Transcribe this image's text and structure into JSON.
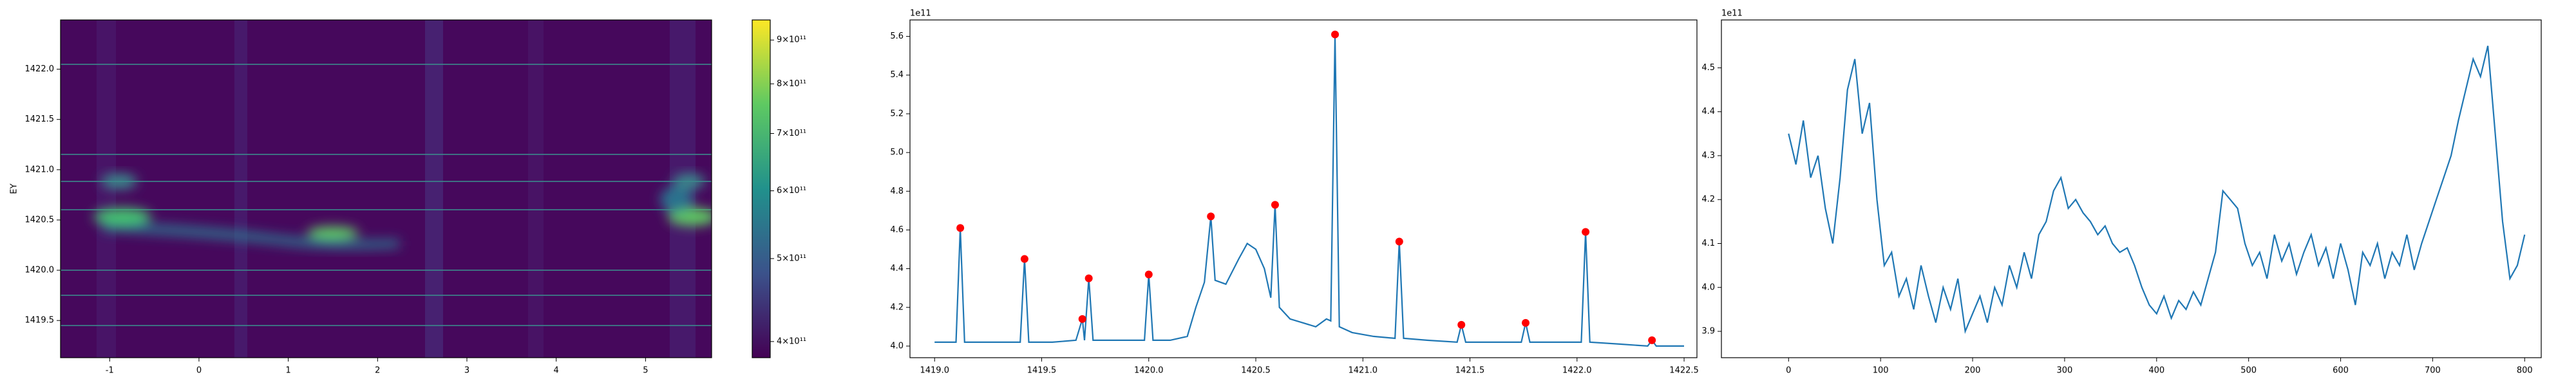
{
  "chart_data": [
    {
      "type": "heatmap",
      "ylabel": "EY",
      "xlim": [
        -1.55,
        5.74
      ],
      "ylim": [
        1419.13,
        1422.49
      ],
      "xticks": [
        -1,
        0,
        1,
        2,
        3,
        4,
        5
      ],
      "yticks": [
        1419.5,
        {
          "value": 1420,
          "label": "1420.0"
        },
        1420.5,
        {
          "value": 1421,
          "label": "1421.0"
        },
        1421.5,
        {
          "value": 1422,
          "label": "1422.0"
        }
      ],
      "colormap": "viridis",
      "colorbar": {
        "scale": "log",
        "lim": [
          383000000000,
          950000000000
        ],
        "ticks": [
          {
            "value": 400000000000,
            "label": "4×10¹¹"
          },
          {
            "value": 500000000000,
            "label": "5×10¹¹"
          },
          {
            "value": 600000000000,
            "label": "6×10¹¹"
          },
          {
            "value": 700000000000,
            "label": "7×10¹¹"
          },
          {
            "value": 800000000000,
            "label": "8×10¹¹"
          },
          {
            "value": 900000000000,
            "label": "9×10¹¹"
          }
        ]
      }
    },
    {
      "type": "line",
      "offset_text": "1e11",
      "color": "#1f77b4",
      "xlim": [
        1418.885,
        1422.56
      ],
      "ylim": [
        3.94,
        5.685
      ],
      "xticks": [
        {
          "value": 1419,
          "label": "1419.0"
        },
        1419.5,
        {
          "value": 1420,
          "label": "1420.0"
        },
        1420.5,
        {
          "value": 1421,
          "label": "1421.0"
        },
        1421.5,
        {
          "value": 1422,
          "label": "1422.0"
        },
        1422.5
      ],
      "yticks": [
        {
          "value": 4,
          "label": "4.0"
        },
        4.2,
        4.4,
        4.6,
        4.8,
        {
          "value": 5,
          "label": "5.0"
        },
        5.2,
        5.4,
        5.6
      ],
      "x": [
        1419.0,
        1419.1,
        1419.12,
        1419.14,
        1419.25,
        1419.4,
        1419.42,
        1419.44,
        1419.55,
        1419.66,
        1419.69,
        1419.7,
        1419.72,
        1419.74,
        1419.85,
        1419.98,
        1420.0,
        1420.02,
        1420.1,
        1420.18,
        1420.22,
        1420.26,
        1420.29,
        1420.31,
        1420.36,
        1420.42,
        1420.46,
        1420.5,
        1420.54,
        1420.57,
        1420.59,
        1420.61,
        1420.66,
        1420.72,
        1420.78,
        1420.83,
        1420.85,
        1420.87,
        1420.89,
        1420.95,
        1421.05,
        1421.15,
        1421.17,
        1421.19,
        1421.3,
        1421.44,
        1421.46,
        1421.48,
        1421.6,
        1421.74,
        1421.76,
        1421.78,
        1421.9,
        1422.02,
        1422.04,
        1422.06,
        1422.2,
        1422.33,
        1422.35,
        1422.37,
        1422.5
      ],
      "values": [
        4.02,
        4.02,
        4.61,
        4.02,
        4.02,
        4.02,
        4.45,
        4.02,
        4.02,
        4.03,
        4.14,
        4.03,
        4.35,
        4.03,
        4.03,
        4.03,
        4.37,
        4.03,
        4.03,
        4.05,
        4.2,
        4.33,
        4.67,
        4.34,
        4.32,
        4.45,
        4.53,
        4.5,
        4.4,
        4.25,
        4.73,
        4.2,
        4.14,
        4.12,
        4.1,
        4.14,
        4.13,
        5.61,
        4.1,
        4.07,
        4.05,
        4.04,
        4.54,
        4.04,
        4.03,
        4.02,
        4.11,
        4.02,
        4.02,
        4.02,
        4.12,
        4.02,
        4.02,
        4.02,
        4.59,
        4.02,
        4.01,
        4.0,
        4.03,
        4.0,
        4.0
      ],
      "peaks": {
        "color": "red",
        "x": [
          1419.12,
          1419.42,
          1419.69,
          1419.72,
          1420.0,
          1420.29,
          1420.59,
          1420.87,
          1421.17,
          1421.46,
          1421.76,
          1422.04,
          1422.35
        ],
        "values": [
          4.61,
          4.45,
          4.14,
          4.35,
          4.37,
          4.67,
          4.73,
          5.61,
          4.54,
          4.11,
          4.12,
          4.59,
          4.03
        ]
      }
    },
    {
      "type": "line",
      "offset_text": "1e11",
      "color": "#1f77b4",
      "xlim": [
        -73,
        818
      ],
      "ylim": [
        3.84,
        4.609
      ],
      "xticks": [
        0,
        100,
        200,
        300,
        400,
        500,
        600,
        700,
        800
      ],
      "yticks": [
        3.9,
        {
          "value": 4,
          "label": "4.0"
        },
        4.1,
        4.2,
        4.3,
        4.4,
        4.5
      ],
      "x": [
        0,
        8,
        16,
        24,
        32,
        40,
        48,
        56,
        64,
        72,
        80,
        88,
        96,
        104,
        112,
        120,
        128,
        136,
        144,
        152,
        160,
        168,
        176,
        184,
        192,
        200,
        208,
        216,
        224,
        232,
        240,
        248,
        256,
        264,
        272,
        280,
        288,
        296,
        304,
        312,
        320,
        328,
        336,
        344,
        352,
        360,
        368,
        376,
        384,
        392,
        400,
        408,
        416,
        424,
        432,
        440,
        448,
        456,
        464,
        472,
        480,
        488,
        496,
        504,
        512,
        520,
        528,
        536,
        544,
        552,
        560,
        568,
        576,
        584,
        592,
        600,
        608,
        616,
        624,
        632,
        640,
        648,
        656,
        664,
        672,
        680,
        688,
        696,
        704,
        712,
        720,
        728,
        736,
        744,
        752,
        760,
        768,
        776,
        784,
        792,
        800
      ],
      "values": [
        4.35,
        4.28,
        4.38,
        4.25,
        4.3,
        4.18,
        4.1,
        4.25,
        4.45,
        4.52,
        4.35,
        4.42,
        4.2,
        4.05,
        4.08,
        3.98,
        4.02,
        3.95,
        4.05,
        3.98,
        3.92,
        4.0,
        3.95,
        4.02,
        3.9,
        3.94,
        3.98,
        3.92,
        4.0,
        3.96,
        4.05,
        4.0,
        4.08,
        4.02,
        4.12,
        4.15,
        4.22,
        4.25,
        4.18,
        4.2,
        4.17,
        4.15,
        4.12,
        4.14,
        4.1,
        4.08,
        4.09,
        4.05,
        4.0,
        3.96,
        3.94,
        3.98,
        3.93,
        3.97,
        3.95,
        3.99,
        3.96,
        4.02,
        4.08,
        4.22,
        4.2,
        4.18,
        4.1,
        4.05,
        4.08,
        4.02,
        4.12,
        4.06,
        4.1,
        4.03,
        4.08,
        4.12,
        4.05,
        4.09,
        4.02,
        4.1,
        4.04,
        3.96,
        4.08,
        4.05,
        4.1,
        4.02,
        4.08,
        4.05,
        4.12,
        4.04,
        4.1,
        4.15,
        4.2,
        4.25,
        4.3,
        4.38,
        4.45,
        4.52,
        4.48,
        4.55,
        4.35,
        4.15,
        4.02,
        4.05,
        4.12
      ]
    }
  ]
}
